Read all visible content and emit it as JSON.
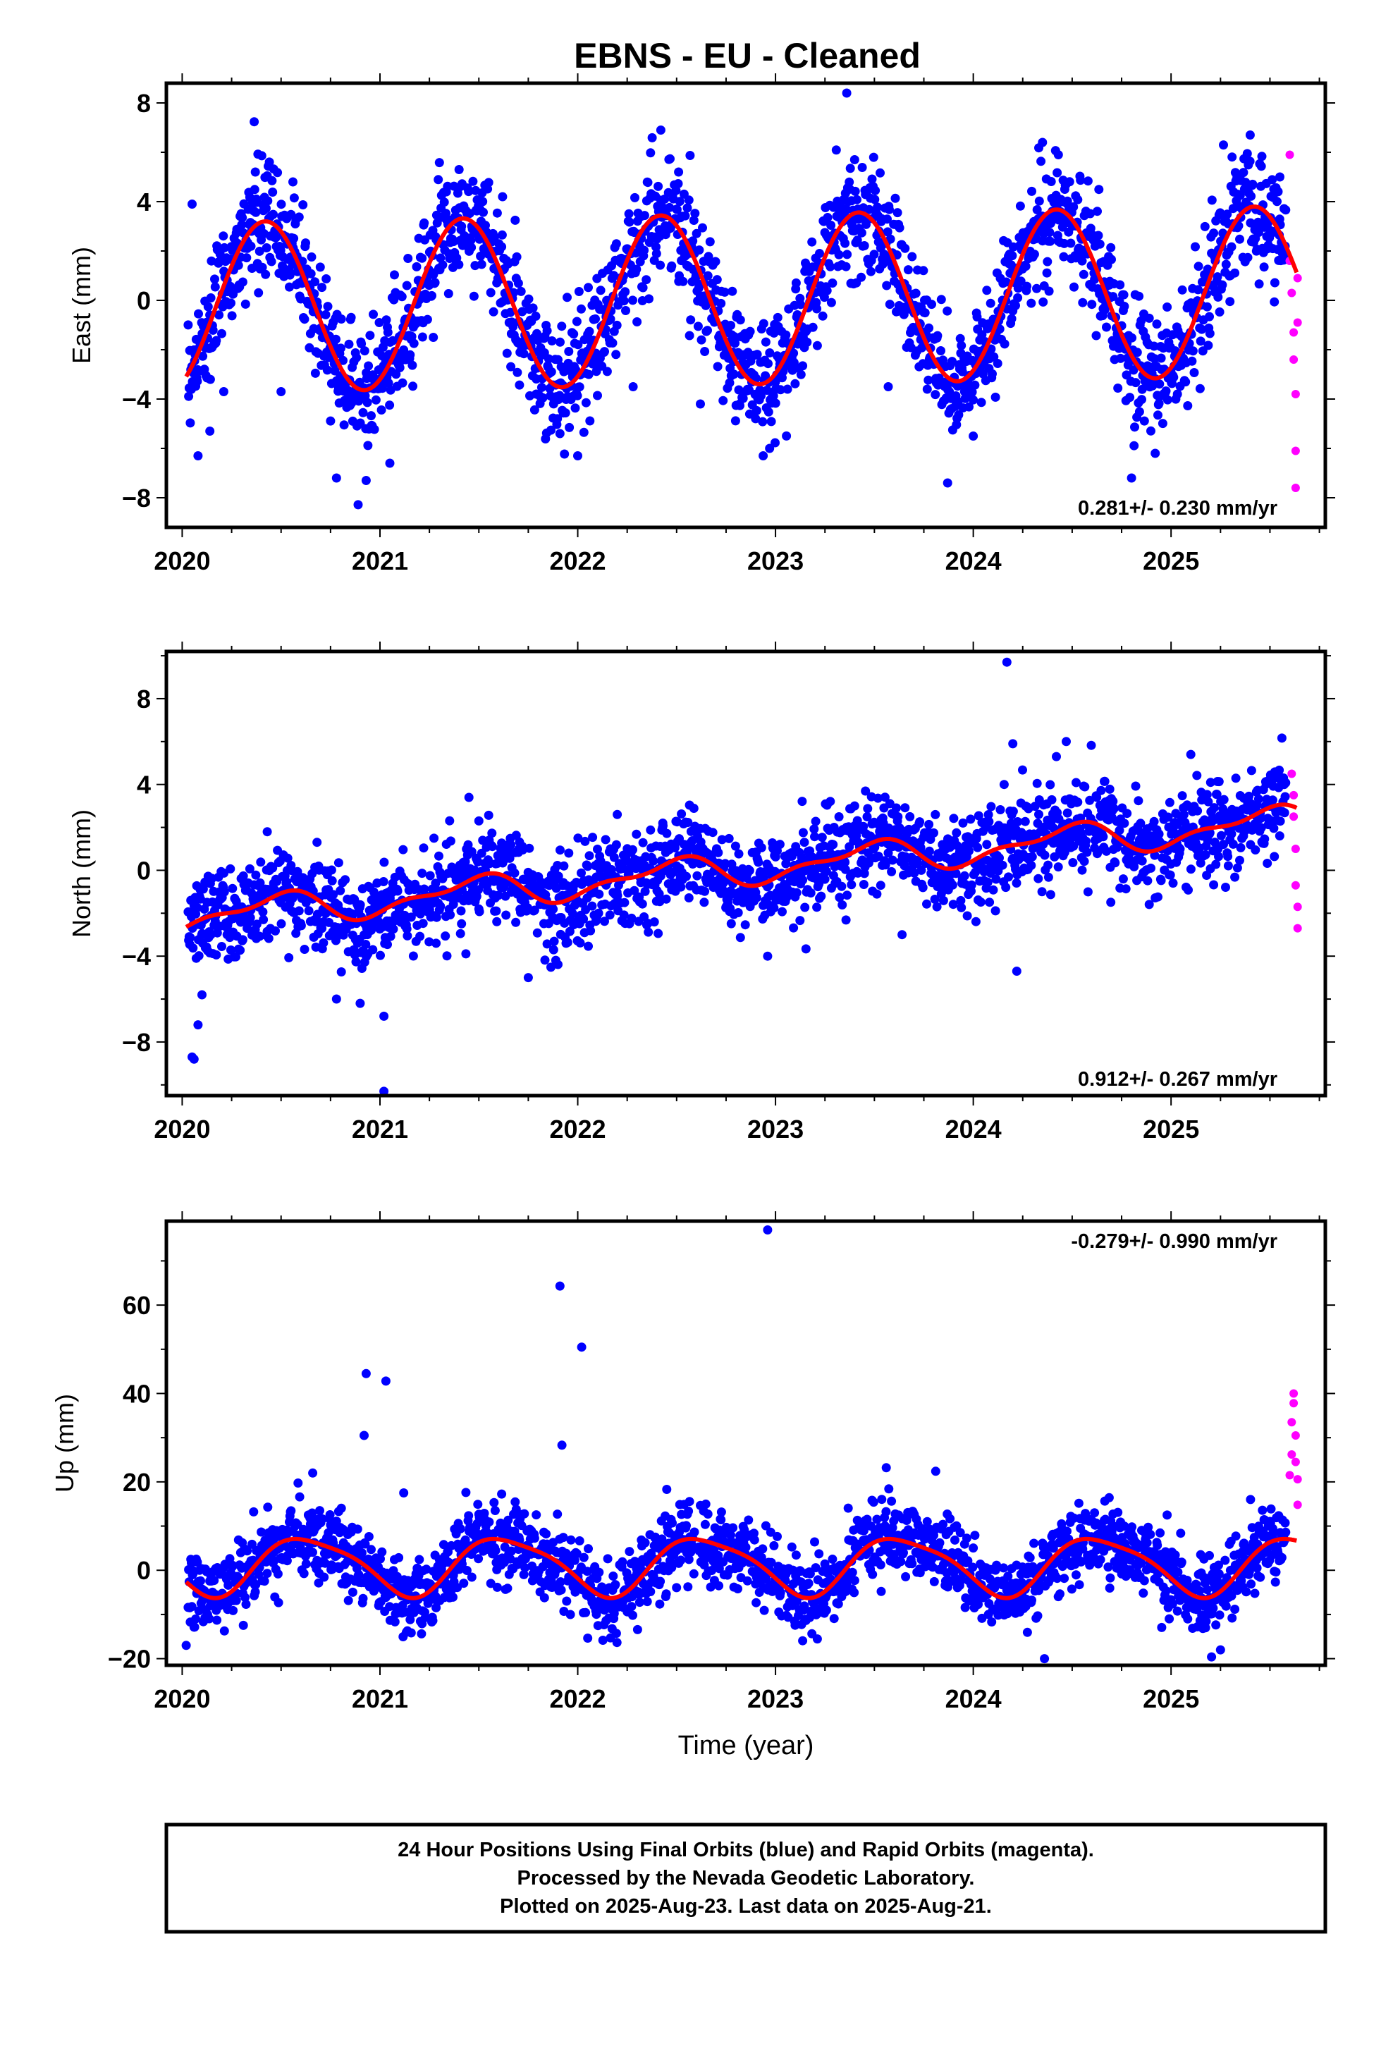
{
  "page": {
    "title": "EBNS  - EU - Cleaned",
    "xlabel": "Time (year)"
  },
  "legend_box": {
    "line1": "24 Hour Positions Using Final Orbits (blue) and Rapid Orbits (magenta).",
    "line2": "Processed by the Nevada Geodetic Laboratory.",
    "line3": "Plotted on 2025-Aug-23. Last data on 2025-Aug-21."
  },
  "colors": {
    "final_orbits": "#0000ff",
    "rapid_orbits": "#ff00ff",
    "model_fit": "#ff0000",
    "frame": "#000000"
  },
  "chart_data": [
    {
      "type": "scatter",
      "panel": "east",
      "ylabel": "East (mm)",
      "rate_label": "0.281+/- 0.230 mm/yr",
      "xlim": [
        2019.92,
        2025.78
      ],
      "ylim": [
        -9.2,
        8.8
      ],
      "xticks": [
        2020,
        2021,
        2022,
        2023,
        2024,
        2025
      ],
      "yticks": [
        -8,
        -4,
        0,
        4,
        8
      ],
      "model": {
        "rate_mm_per_yr": 0.281,
        "annual_amplitude_mm": 3.5,
        "phase_peak_year_fraction": 0.42
      },
      "series": [
        {
          "name": "Final Orbits",
          "color": "#0000ff",
          "points": [
            [
              2020.05,
              3.9
            ],
            [
              2020.08,
              -6.3
            ],
            [
              2020.14,
              -5.3
            ],
            [
              2020.21,
              -3.7
            ],
            [
              2020.37,
              5.2
            ],
            [
              2020.5,
              -3.7
            ],
            [
              2020.56,
              4.8
            ],
            [
              2020.78,
              -7.2
            ],
            [
              2020.93,
              -7.3
            ],
            [
              2021.05,
              -6.6
            ],
            [
              2021.27,
              -1.5
            ],
            [
              2021.4,
              5.3
            ],
            [
              2021.62,
              4.2
            ],
            [
              2021.79,
              -3.8
            ],
            [
              2021.91,
              -5.4
            ],
            [
              2022.0,
              -6.3
            ],
            [
              2022.28,
              -3.5
            ],
            [
              2022.42,
              6.9
            ],
            [
              2022.51,
              5.2
            ],
            [
              2022.62,
              -4.2
            ],
            [
              2022.97,
              -6.0
            ],
            [
              2023.0,
              -3.3
            ],
            [
              2023.36,
              8.4
            ],
            [
              2023.4,
              5.7
            ],
            [
              2023.57,
              -3.5
            ],
            [
              2023.87,
              -7.4
            ],
            [
              2024.0,
              -5.5
            ],
            [
              2024.35,
              6.4
            ],
            [
              2024.43,
              5.9
            ],
            [
              2024.8,
              -7.2
            ],
            [
              2024.92,
              -6.2
            ],
            [
              2025.4,
              6.7
            ],
            [
              2025.55,
              5.0
            ]
          ]
        },
        {
          "name": "Rapid Orbits",
          "color": "#ff00ff",
          "points": [
            [
              2025.6,
              5.9
            ],
            [
              2025.6,
              1.6
            ],
            [
              2025.61,
              0.3
            ],
            [
              2025.62,
              -1.3
            ],
            [
              2025.62,
              -2.4
            ],
            [
              2025.63,
              -3.8
            ],
            [
              2025.63,
              -6.1
            ],
            [
              2025.63,
              -7.6
            ],
            [
              2025.64,
              0.9
            ],
            [
              2025.64,
              -0.9
            ]
          ]
        }
      ]
    },
    {
      "type": "scatter",
      "panel": "north",
      "ylabel": "North (mm)",
      "rate_label": "0.912+/- 0.267 mm/yr",
      "xlim": [
        2019.92,
        2025.78
      ],
      "ylim": [
        -10.5,
        10.2
      ],
      "xticks": [
        2020,
        2021,
        2022,
        2023,
        2024,
        2025
      ],
      "yticks": [
        -8,
        -4,
        0,
        4,
        8
      ],
      "model": {
        "rate_mm_per_yr": 0.912,
        "annual_amplitude_mm": 0.6,
        "phase_peak_year_fraction": 0.47
      },
      "series": [
        {
          "name": "Final Orbits",
          "color": "#0000ff",
          "points": [
            [
              2020.05,
              -8.7
            ],
            [
              2020.06,
              -8.8
            ],
            [
              2020.08,
              -7.2
            ],
            [
              2020.1,
              -5.8
            ],
            [
              2020.43,
              1.8
            ],
            [
              2020.78,
              -6.0
            ],
            [
              2020.9,
              -6.2
            ],
            [
              2021.02,
              -6.8
            ],
            [
              2021.02,
              -10.3
            ],
            [
              2021.45,
              3.4
            ],
            [
              2021.5,
              2.3
            ],
            [
              2021.75,
              -5.0
            ],
            [
              2022.2,
              2.6
            ],
            [
              2022.43,
              2.2
            ],
            [
              2022.96,
              -4.0
            ],
            [
              2023.4,
              3.0
            ],
            [
              2023.64,
              -3.0
            ],
            [
              2024.17,
              9.7
            ],
            [
              2024.22,
              -4.7
            ],
            [
              2024.42,
              5.3
            ],
            [
              2024.47,
              6.0
            ],
            [
              2024.2,
              5.9
            ],
            [
              2025.1,
              5.4
            ],
            [
              2025.2,
              4.1
            ]
          ]
        },
        {
          "name": "Rapid Orbits",
          "color": "#ff00ff",
          "points": [
            [
              2025.61,
              4.5
            ],
            [
              2025.62,
              3.5
            ],
            [
              2025.62,
              2.5
            ],
            [
              2025.63,
              1.0
            ],
            [
              2025.63,
              -0.7
            ],
            [
              2025.64,
              -1.7
            ],
            [
              2025.64,
              -2.7
            ]
          ]
        }
      ]
    },
    {
      "type": "scatter",
      "panel": "up",
      "ylabel": "Up (mm)",
      "rate_label": "-0.279+/- 0.990 mm/yr",
      "xlim": [
        2019.92,
        2025.78
      ],
      "ylim": [
        -21.5,
        79
      ],
      "xticks": [
        2020,
        2021,
        2022,
        2023,
        2024,
        2025
      ],
      "yticks": [
        -20,
        0,
        20,
        40,
        60
      ],
      "model": {
        "rate_mm_per_yr": -0.279,
        "annual_amplitude_mm": 6.2,
        "phase_peak_year_fraction": 0.63
      },
      "series": [
        {
          "name": "Final Orbits",
          "color": "#0000ff",
          "points": [
            [
              2020.02,
              -17
            ],
            [
              2020.66,
              22
            ],
            [
              2020.92,
              30.5
            ],
            [
              2020.93,
              44.5
            ],
            [
              2021.03,
              42.8
            ],
            [
              2021.12,
              17.5
            ],
            [
              2021.91,
              64.3
            ],
            [
              2021.92,
              28.3
            ],
            [
              2022.02,
              50.5
            ],
            [
              2022.45,
              18.3
            ],
            [
              2022.96,
              77
            ],
            [
              2023.56,
              23.2
            ],
            [
              2023.81,
              22.4
            ],
            [
              2024.36,
              -20
            ],
            [
              2024.98,
              12.5
            ],
            [
              2025.25,
              -18
            ]
          ]
        },
        {
          "name": "Rapid Orbits",
          "color": "#ff00ff",
          "points": [
            [
              2025.6,
              21.5
            ],
            [
              2025.61,
              26.2
            ],
            [
              2025.61,
              33.5
            ],
            [
              2025.62,
              40
            ],
            [
              2025.62,
              37.8
            ],
            [
              2025.63,
              30.5
            ],
            [
              2025.63,
              24.5
            ],
            [
              2025.64,
              20.6
            ],
            [
              2025.64,
              14.8
            ]
          ]
        }
      ]
    }
  ]
}
